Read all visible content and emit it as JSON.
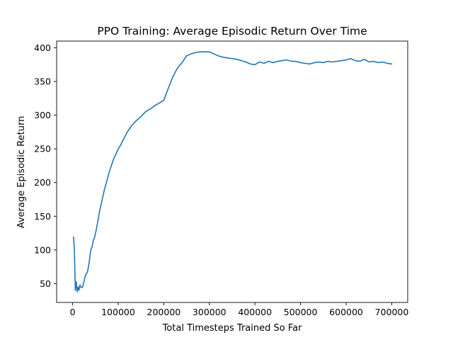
{
  "chart_data": {
    "type": "line",
    "title": "PPO Training: Average Episodic Return Over Time",
    "xlabel": "Total Timesteps Trained So Far",
    "ylabel": "Average Episodic Return",
    "xlim": [
      -35000,
      735000
    ],
    "ylim": [
      22,
      410
    ],
    "xticks": [
      0,
      100000,
      200000,
      300000,
      400000,
      500000,
      600000,
      700000
    ],
    "yticks": [
      50,
      100,
      150,
      200,
      250,
      300,
      350,
      400
    ],
    "grid": false,
    "legend": "none",
    "series": [
      {
        "color": "#1f77b4",
        "x": [
          2000,
          4000,
          6000,
          8000,
          10000,
          12000,
          14000,
          16000,
          18000,
          20000,
          22000,
          25000,
          28000,
          30000,
          33000,
          36000,
          40000,
          43000,
          45000,
          48000,
          52000,
          56000,
          60000,
          65000,
          70000,
          75000,
          80000,
          85000,
          90000,
          95000,
          100000,
          105000,
          110000,
          120000,
          130000,
          140000,
          150000,
          160000,
          170000,
          180000,
          190000,
          200000,
          210000,
          220000,
          230000,
          240000,
          250000,
          260000,
          270000,
          280000,
          290000,
          300000,
          310000,
          320000,
          330000,
          340000,
          350000,
          360000,
          370000,
          380000,
          390000,
          400000,
          410000,
          420000,
          430000,
          440000,
          450000,
          460000,
          470000,
          480000,
          490000,
          500000,
          510000,
          520000,
          530000,
          540000,
          550000,
          560000,
          570000,
          580000,
          590000,
          600000,
          610000,
          620000,
          630000,
          640000,
          650000,
          660000,
          670000,
          680000,
          690000,
          700000
        ],
        "y": [
          119,
          100,
          40,
          53,
          38,
          45,
          40,
          48,
          45,
          44,
          45,
          53,
          62,
          64,
          68,
          80,
          100,
          105,
          113,
          118,
          130,
          145,
          160,
          175,
          190,
          202,
          215,
          225,
          235,
          242,
          250,
          255,
          262,
          275,
          285,
          292,
          298,
          305,
          309,
          314,
          318,
          322,
          340,
          357,
          370,
          378,
          388,
          391,
          393,
          394,
          394,
          394,
          391,
          388,
          386,
          385,
          384,
          383,
          381,
          379,
          376,
          375,
          379,
          377,
          380,
          378,
          380,
          381,
          382,
          380,
          380,
          378,
          377,
          376,
          378,
          379,
          378,
          380,
          379,
          380,
          381,
          382,
          384,
          381,
          380,
          383,
          379,
          380,
          378,
          379,
          377,
          376
        ]
      }
    ]
  }
}
